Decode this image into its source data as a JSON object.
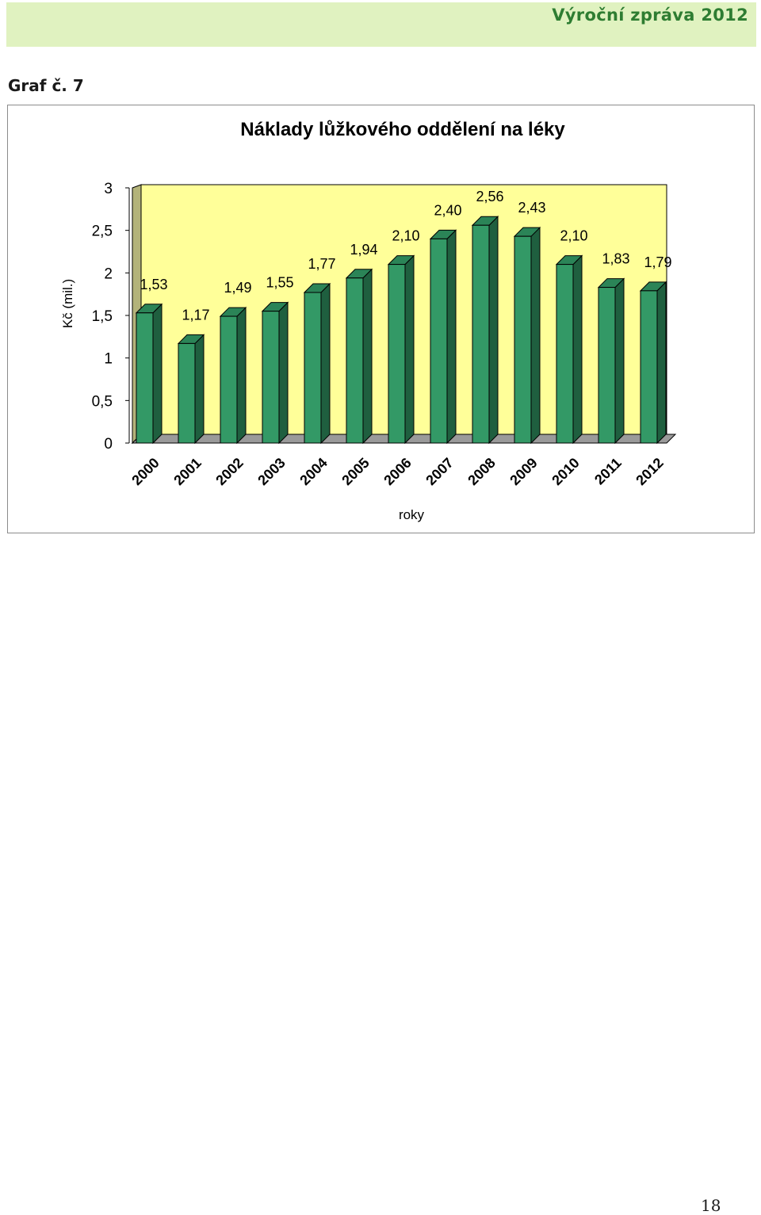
{
  "header": {
    "report_title": "Výroční zpráva 2012"
  },
  "figure_label": "Graf č. 7",
  "page_number": "18",
  "colors": {
    "header_band": "#e0f2c0",
    "report_title": "#2e7d32",
    "plot_wall": "#ffff99",
    "bar_front": "#339966",
    "bar_side": "#1f5f3f",
    "bar_top": "#2b8457"
  },
  "chart_data": {
    "type": "bar",
    "title": "Náklady lůžkového oddělení na léky",
    "xlabel": "roky",
    "ylabel": "Kč (mil.)",
    "ylim": [
      0,
      3
    ],
    "yticks": [
      "0",
      "0,5",
      "1",
      "1,5",
      "2",
      "2,5",
      "3"
    ],
    "categories": [
      "2000",
      "2001",
      "2002",
      "2003",
      "2004",
      "2005",
      "2006",
      "2007",
      "2008",
      "2009",
      "2010",
      "2011",
      "2012"
    ],
    "values": [
      1.53,
      1.17,
      1.49,
      1.55,
      1.77,
      1.94,
      2.1,
      2.4,
      2.56,
      2.43,
      2.1,
      1.83,
      1.79
    ],
    "value_labels": [
      "1,53",
      "1,17",
      "1,49",
      "1,55",
      "1,77",
      "1,94",
      "2,10",
      "2,40",
      "2,56",
      "2,43",
      "2,10",
      "1,83",
      "1,79"
    ],
    "style": "3d-column",
    "grid": false,
    "legend": "none"
  }
}
